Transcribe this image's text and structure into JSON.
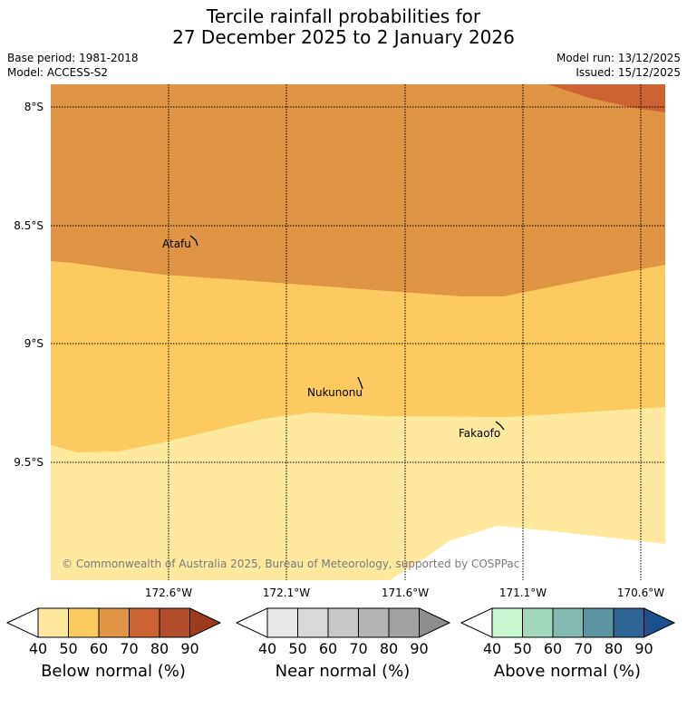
{
  "header": {
    "title_line1": "Tercile rainfall probabilities for",
    "title_line2": "27 December 2025 to 2 January 2026",
    "base_period": "Base period: 1981-2018",
    "model": "Model: ACCESS-S2",
    "model_run": "Model run: 13/12/2025",
    "issued": "Issued: 15/12/2025"
  },
  "map": {
    "lat_labels": [
      "8°S",
      "8.5°S",
      "9°S",
      "9.5°S"
    ],
    "lon_labels": [
      "172.6°W",
      "172.1°W",
      "171.6°W",
      "171.1°W",
      "170.6°W"
    ],
    "places": [
      {
        "name": "Atafu"
      },
      {
        "name": "Nukunonu"
      },
      {
        "name": "Fakaofo"
      }
    ],
    "copyright": "© Commonwealth of Australia 2025, Bureau of Meteorology, supported by COSPPac",
    "colors": {
      "below_40_50": "#fee99f",
      "below_50_60": "#fdca62",
      "below_60_70": "#e09445",
      "below_70_80": "#cc6332"
    }
  },
  "colorbars": [
    {
      "title": "Below normal (%)",
      "ticks": [
        "40",
        "50",
        "60",
        "70",
        "80",
        "90"
      ],
      "colors": [
        "#fee99f",
        "#fdca62",
        "#e09445",
        "#cc6332",
        "#b04d2a",
        "#9c3c1e"
      ]
    },
    {
      "title": "Near normal (%)",
      "ticks": [
        "40",
        "50",
        "60",
        "70",
        "80",
        "90"
      ],
      "colors": [
        "#e8e8e8",
        "#d9d9d9",
        "#c8c8c8",
        "#b4b4b4",
        "#a1a1a1",
        "#8c8c8c"
      ]
    },
    {
      "title": "Above normal (%)",
      "ticks": [
        "40",
        "50",
        "60",
        "70",
        "80",
        "90"
      ],
      "colors": [
        "#c8f8d0",
        "#a2d8bc",
        "#82b9b0",
        "#5a95a0",
        "#2e6496",
        "#1e4f8c"
      ]
    }
  ]
}
